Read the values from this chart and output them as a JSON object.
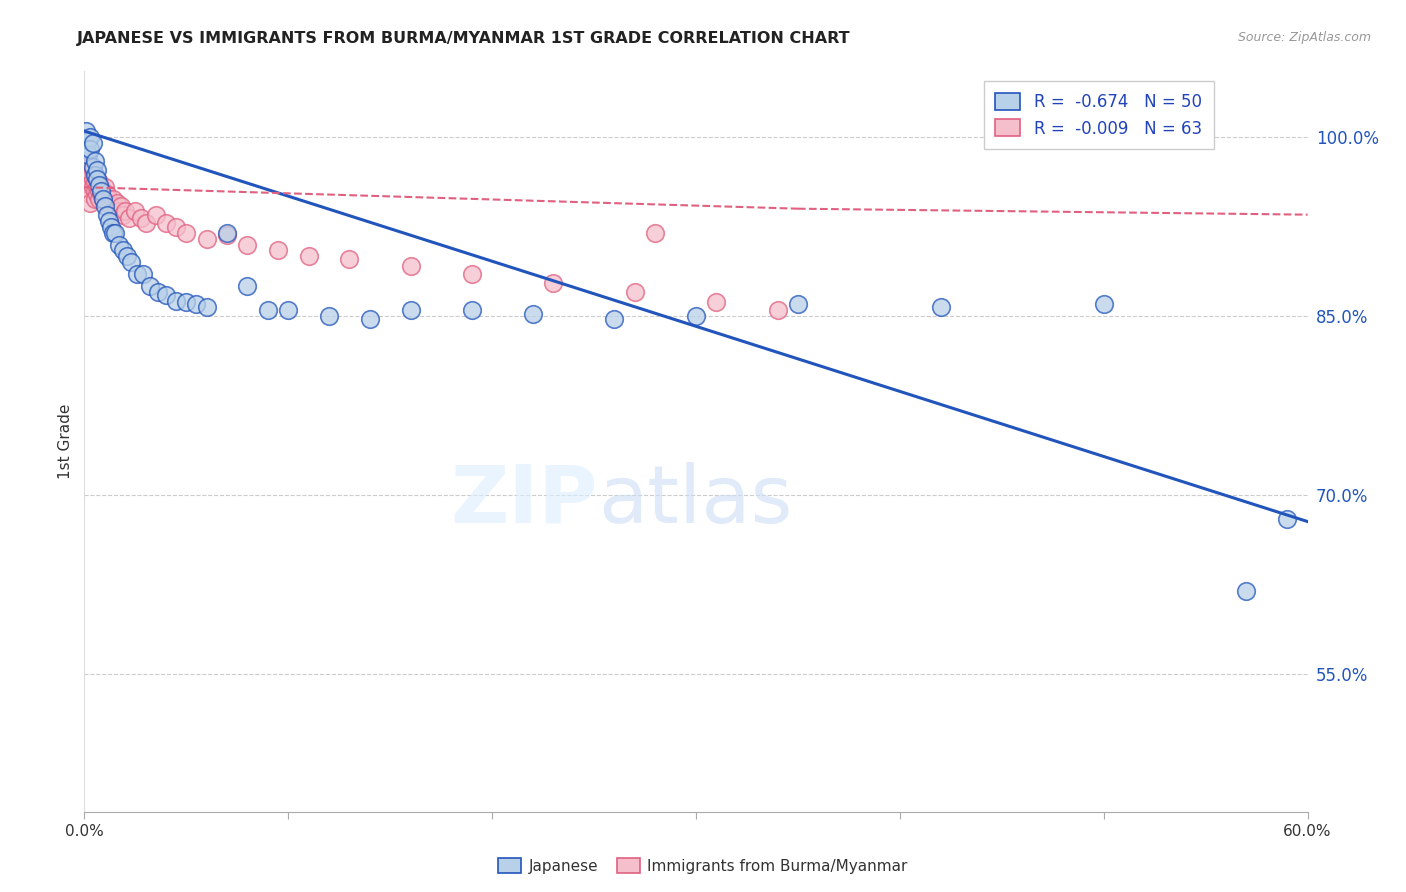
{
  "title": "JAPANESE VS IMMIGRANTS FROM BURMA/MYANMAR 1ST GRADE CORRELATION CHART",
  "source": "Source: ZipAtlas.com",
  "ylabel": "1st Grade",
  "ytick_labels": [
    "100.0%",
    "85.0%",
    "70.0%",
    "55.0%"
  ],
  "ytick_values": [
    1.0,
    0.85,
    0.7,
    0.55
  ],
  "legend_blue_r": "-0.674",
  "legend_blue_n": "N = 50",
  "legend_pink_r": "-0.009",
  "legend_pink_n": "N = 63",
  "blue_scatter_x": [
    0.001,
    0.001,
    0.002,
    0.002,
    0.003,
    0.003,
    0.004,
    0.004,
    0.005,
    0.005,
    0.006,
    0.006,
    0.007,
    0.008,
    0.009,
    0.01,
    0.011,
    0.012,
    0.013,
    0.014,
    0.015,
    0.017,
    0.019,
    0.021,
    0.023,
    0.026,
    0.029,
    0.032,
    0.036,
    0.04,
    0.045,
    0.05,
    0.055,
    0.06,
    0.07,
    0.08,
    0.09,
    0.1,
    0.12,
    0.14,
    0.16,
    0.19,
    0.22,
    0.26,
    0.3,
    0.35,
    0.42,
    0.5,
    0.57,
    0.59
  ],
  "blue_scatter_y": [
    0.99,
    1.005,
    0.997,
    0.985,
    1.0,
    0.99,
    0.995,
    0.975,
    0.98,
    0.968,
    0.972,
    0.965,
    0.96,
    0.955,
    0.948,
    0.942,
    0.935,
    0.93,
    0.925,
    0.92,
    0.92,
    0.91,
    0.905,
    0.9,
    0.895,
    0.885,
    0.885,
    0.875,
    0.87,
    0.868,
    0.863,
    0.862,
    0.86,
    0.858,
    0.92,
    0.875,
    0.855,
    0.855,
    0.85,
    0.848,
    0.855,
    0.855,
    0.852,
    0.848,
    0.85,
    0.86,
    0.858,
    0.86,
    0.62,
    0.68
  ],
  "pink_scatter_x": [
    0.001,
    0.001,
    0.001,
    0.002,
    0.002,
    0.002,
    0.002,
    0.003,
    0.003,
    0.003,
    0.003,
    0.003,
    0.004,
    0.004,
    0.004,
    0.005,
    0.005,
    0.005,
    0.005,
    0.006,
    0.006,
    0.006,
    0.007,
    0.007,
    0.007,
    0.008,
    0.008,
    0.009,
    0.009,
    0.01,
    0.01,
    0.011,
    0.011,
    0.012,
    0.013,
    0.014,
    0.015,
    0.016,
    0.017,
    0.018,
    0.019,
    0.02,
    0.022,
    0.025,
    0.028,
    0.03,
    0.035,
    0.04,
    0.045,
    0.05,
    0.06,
    0.07,
    0.08,
    0.095,
    0.11,
    0.13,
    0.16,
    0.19,
    0.23,
    0.27,
    0.31,
    0.34,
    0.28
  ],
  "pink_scatter_y": [
    0.98,
    0.97,
    0.96,
    0.975,
    0.968,
    0.962,
    0.955,
    0.975,
    0.968,
    0.96,
    0.952,
    0.945,
    0.972,
    0.965,
    0.958,
    0.968,
    0.962,
    0.955,
    0.948,
    0.965,
    0.958,
    0.952,
    0.962,
    0.955,
    0.948,
    0.958,
    0.952,
    0.955,
    0.948,
    0.958,
    0.95,
    0.952,
    0.945,
    0.948,
    0.942,
    0.948,
    0.942,
    0.945,
    0.938,
    0.942,
    0.935,
    0.938,
    0.932,
    0.938,
    0.932,
    0.928,
    0.935,
    0.928,
    0.925,
    0.92,
    0.915,
    0.918,
    0.91,
    0.905,
    0.9,
    0.898,
    0.892,
    0.885,
    0.878,
    0.87,
    0.862,
    0.855,
    0.92
  ],
  "blue_line_x": [
    0.0,
    0.6
  ],
  "blue_line_y": [
    1.005,
    0.678
  ],
  "pink_line_x": [
    0.0,
    0.35
  ],
  "pink_line_y": [
    0.958,
    0.94
  ],
  "xmin": 0.0,
  "xmax": 0.6,
  "ymin": 0.435,
  "ymax": 1.055,
  "blue_color": "#b8d0e8",
  "blue_line_color": "#2255bb",
  "pink_color": "#f5c0cc",
  "pink_line_color": "#e06080",
  "pink_dashed_line_color": "#e06080",
  "grid_color": "#cccccc",
  "background_color": "#ffffff"
}
